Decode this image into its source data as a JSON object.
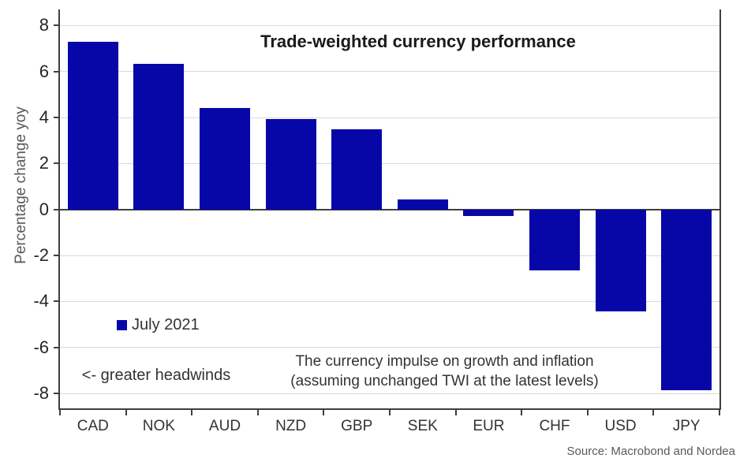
{
  "chart": {
    "title": "Trade-weighted currency performance",
    "ylabel": "Percentage change yoy",
    "legend_label": "July 2021",
    "annotation_headwinds": "<- greater headwinds",
    "annotation_impulse_line1": "The currency impulse on growth and inflation",
    "annotation_impulse_line2": "(assuming unchanged TWI at the latest levels)",
    "source": "Source: Macrobond and Nordea"
  },
  "chart_data": {
    "type": "bar",
    "title": "Trade-weighted currency performance",
    "categories": [
      "CAD",
      "NOK",
      "AUD",
      "NZD",
      "GBP",
      "SEK",
      "EUR",
      "CHF",
      "USD",
      "JPY"
    ],
    "series": [
      {
        "name": "July 2021",
        "values": [
          7.3,
          6.35,
          4.4,
          3.95,
          3.5,
          0.45,
          -0.3,
          -2.65,
          -4.45,
          -7.85
        ]
      }
    ],
    "xlabel": "",
    "ylabel": "Percentage change yoy",
    "ylim": [
      -8.65,
      8.7
    ],
    "yticks": [
      -8,
      -6,
      -4,
      -2,
      0,
      2,
      4,
      6,
      8
    ],
    "grid": true,
    "legend_position": "inside-left",
    "annotations": [
      "<- greater headwinds",
      "The currency impulse on growth and inflation (assuming unchanged TWI at the latest levels)"
    ],
    "source": "Source: Macrobond and Nordea"
  },
  "colors": {
    "bar": "#0707a8",
    "grid": "#d9d9d9",
    "axis": "#3f3f3f",
    "tick_text": "#262626",
    "muted_text": "#595959",
    "title_text": "#1a1a1a"
  }
}
